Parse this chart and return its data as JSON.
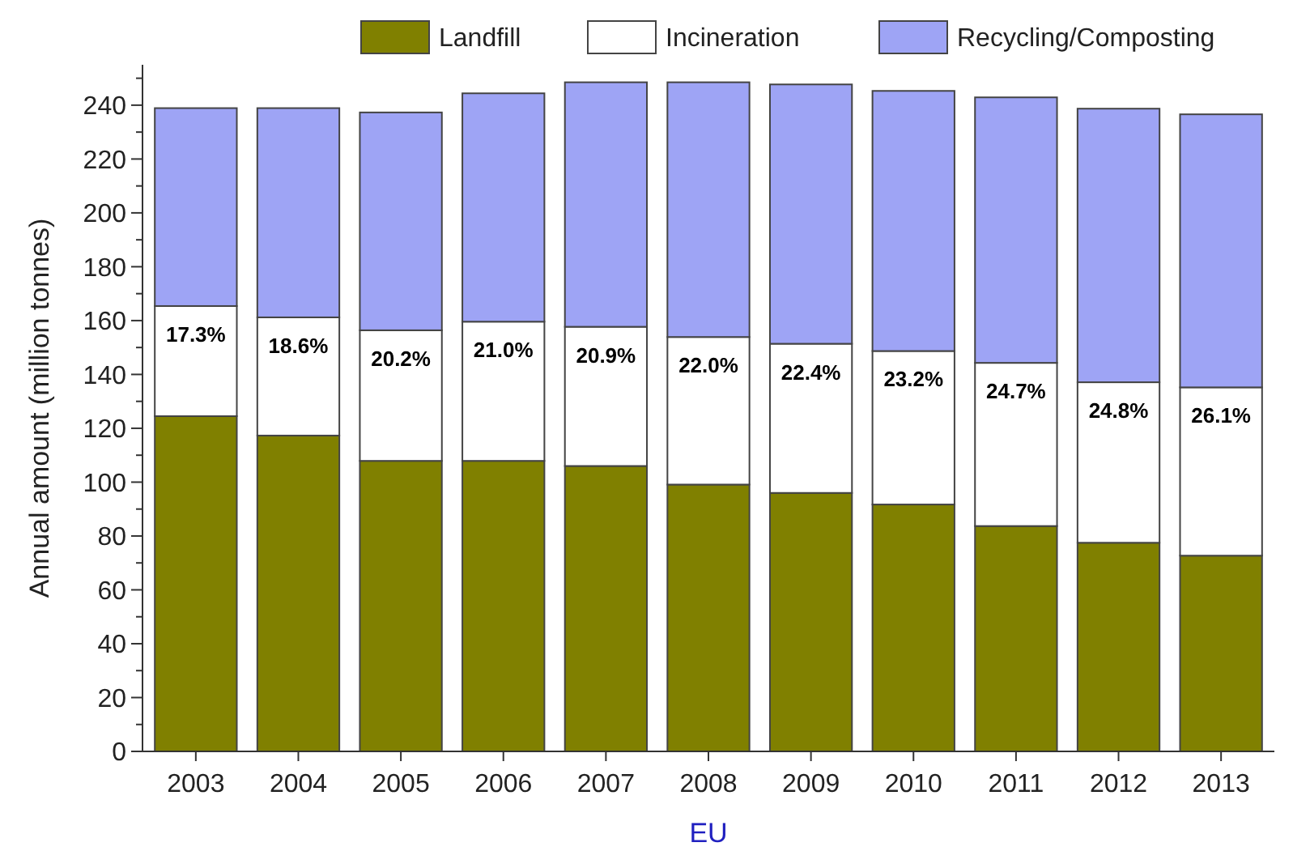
{
  "chart_data": {
    "type": "bar",
    "stacked": true,
    "xlabel": "EU",
    "ylabel": "Annual amount (million tonnes)",
    "legend": "top",
    "categories": [
      "2003",
      "2004",
      "2005",
      "2006",
      "2007",
      "2008",
      "2009",
      "2010",
      "2011",
      "2012",
      "2013"
    ],
    "ylim": [
      0,
      255
    ],
    "yticks": [
      0,
      {
        "value": 10,
        "label": null
      },
      20,
      {
        "value": 30,
        "label": null
      },
      40,
      {
        "value": 50,
        "label": null
      },
      60,
      {
        "value": 70,
        "label": null
      },
      80,
      {
        "value": 90,
        "label": null
      },
      100,
      {
        "value": 110,
        "label": null
      },
      120,
      {
        "value": 130,
        "label": null
      },
      140,
      {
        "value": 150,
        "label": null
      },
      160,
      {
        "value": 170,
        "label": null
      },
      180,
      {
        "value": 190,
        "label": null
      },
      200,
      {
        "value": 210,
        "label": null
      },
      220,
      {
        "value": 230,
        "label": null
      },
      240,
      {
        "value": 250,
        "label": null
      }
    ],
    "annotations": [
      {
        "text": "17.3%",
        "x": "2003",
        "y": 165.4
      },
      {
        "text": "18.6%",
        "x": "2004",
        "y": 161.2
      },
      {
        "text": "20.2%",
        "x": "2005",
        "y": 156.4
      },
      {
        "text": "21.0%",
        "x": "2006",
        "y": 159.6
      },
      {
        "text": "20.9%",
        "x": "2007",
        "y": 157.7
      },
      {
        "text": "22.0%",
        "x": "2008",
        "y": 153.9
      },
      {
        "text": "22.4%",
        "x": "2009",
        "y": 151.4
      },
      {
        "text": "23.2%",
        "x": "2010",
        "y": 148.7
      },
      {
        "text": "24.7%",
        "x": "2011",
        "y": 144.3
      },
      {
        "text": "24.8%",
        "x": "2012",
        "y": 137.1
      },
      {
        "text": "26.1%",
        "x": "2013",
        "y": 135.2
      }
    ],
    "series": [
      {
        "name": "Landfill",
        "color": "#808000",
        "values": [
          124.5,
          117.3,
          107.9,
          107.9,
          106,
          99.1,
          96,
          91.7,
          83.7,
          77.5,
          72.7
        ]
      },
      {
        "name": "Incineration",
        "color": "#ffffff",
        "values": [
          40.9,
          43.9,
          48.5,
          51.7,
          51.7,
          54.8,
          55.4,
          57,
          60.6,
          59.6,
          62.5
        ]
      },
      {
        "name": "Recycling/Composting",
        "color": "#9ea4f5",
        "values": [
          73.5,
          77.7,
          80.9,
          84.8,
          90.8,
          94.6,
          96.3,
          96.6,
          98.6,
          101.6,
          101.4
        ]
      }
    ]
  }
}
